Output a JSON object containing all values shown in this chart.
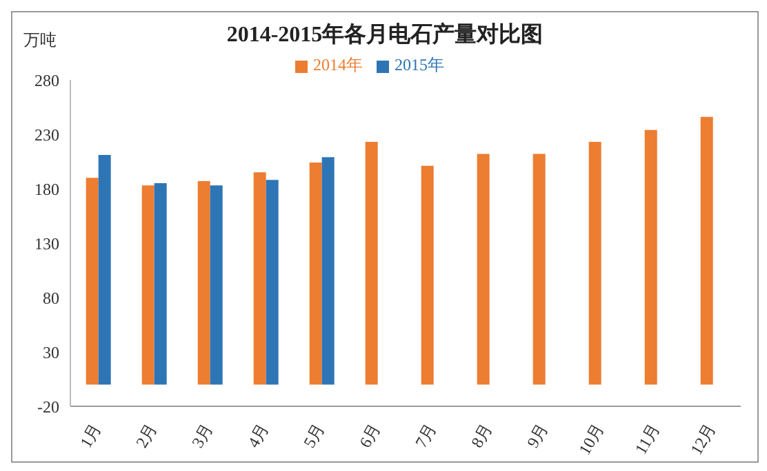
{
  "chart_data": {
    "type": "bar",
    "title": "2014-2015年各月电石产量对比图",
    "ylabel": "万吨",
    "categories": [
      "1月",
      "2月",
      "3月",
      "4月",
      "5月",
      "6月",
      "7月",
      "8月",
      "9月",
      "10月",
      "11月",
      "12月"
    ],
    "series": [
      {
        "name": "2014年",
        "color": "#ed7d31",
        "values": [
          190,
          183,
          187,
          195,
          204,
          223,
          201,
          212,
          212,
          223,
          234,
          246
        ]
      },
      {
        "name": "2015年",
        "color": "#2e75b6",
        "values": [
          211,
          185,
          183,
          188,
          209,
          null,
          null,
          null,
          null,
          null,
          null,
          null
        ]
      }
    ],
    "ylim": [
      -20,
      280
    ],
    "yticks": [
      -20,
      30,
      80,
      130,
      180,
      230,
      280
    ],
    "grid": false,
    "legend": "top"
  }
}
